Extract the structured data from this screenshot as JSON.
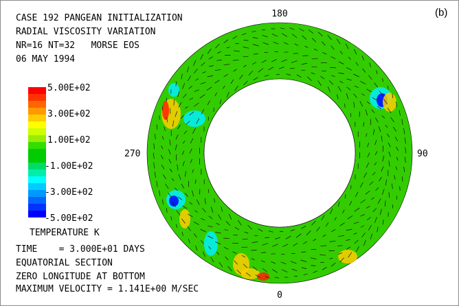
{
  "panel_label": "(b)",
  "header": {
    "line1": "CASE 192 PANGEAN INITIALIZATION",
    "line2": "RADIAL VISCOSITY VARIATION",
    "line3": "NR=16 NT=32   MORSE EOS",
    "line4": "06 MAY 1994"
  },
  "colorbar": {
    "title": "TEMPERATURE K",
    "labels": [
      "5.00E+02",
      "3.00E+02",
      "1.00E+02",
      "-1.00E+02",
      "-3.00E+02",
      "-5.00E+02"
    ],
    "colors": [
      "#ff0000",
      "#ff3300",
      "#ff6600",
      "#ff9900",
      "#ffcc00",
      "#ffff00",
      "#ccff00",
      "#99ee00",
      "#33dd00",
      "#00cc00",
      "#00cc00",
      "#00dd66",
      "#00eeaa",
      "#00ffff",
      "#00ccff",
      "#0099ff",
      "#0066ff",
      "#0033ff",
      "#0000ff"
    ]
  },
  "azimuth_labels": {
    "top": "180",
    "bottom": "0",
    "left": "270",
    "right": "90"
  },
  "footer": {
    "time": "TIME    = 3.000E+01 DAYS",
    "section": "EQUATORIAL SECTION",
    "zero": "ZERO LONGITUDE AT BOTTOM",
    "maxvel": "MAXIMUM VELOCITY = 1.141E+00 M/SEC"
  },
  "field_colors": {
    "background": "#33cc00",
    "hot": "#ff2200",
    "warm": "#ffcc00",
    "cool": "#00eeff",
    "cold": "#0000ff"
  }
}
